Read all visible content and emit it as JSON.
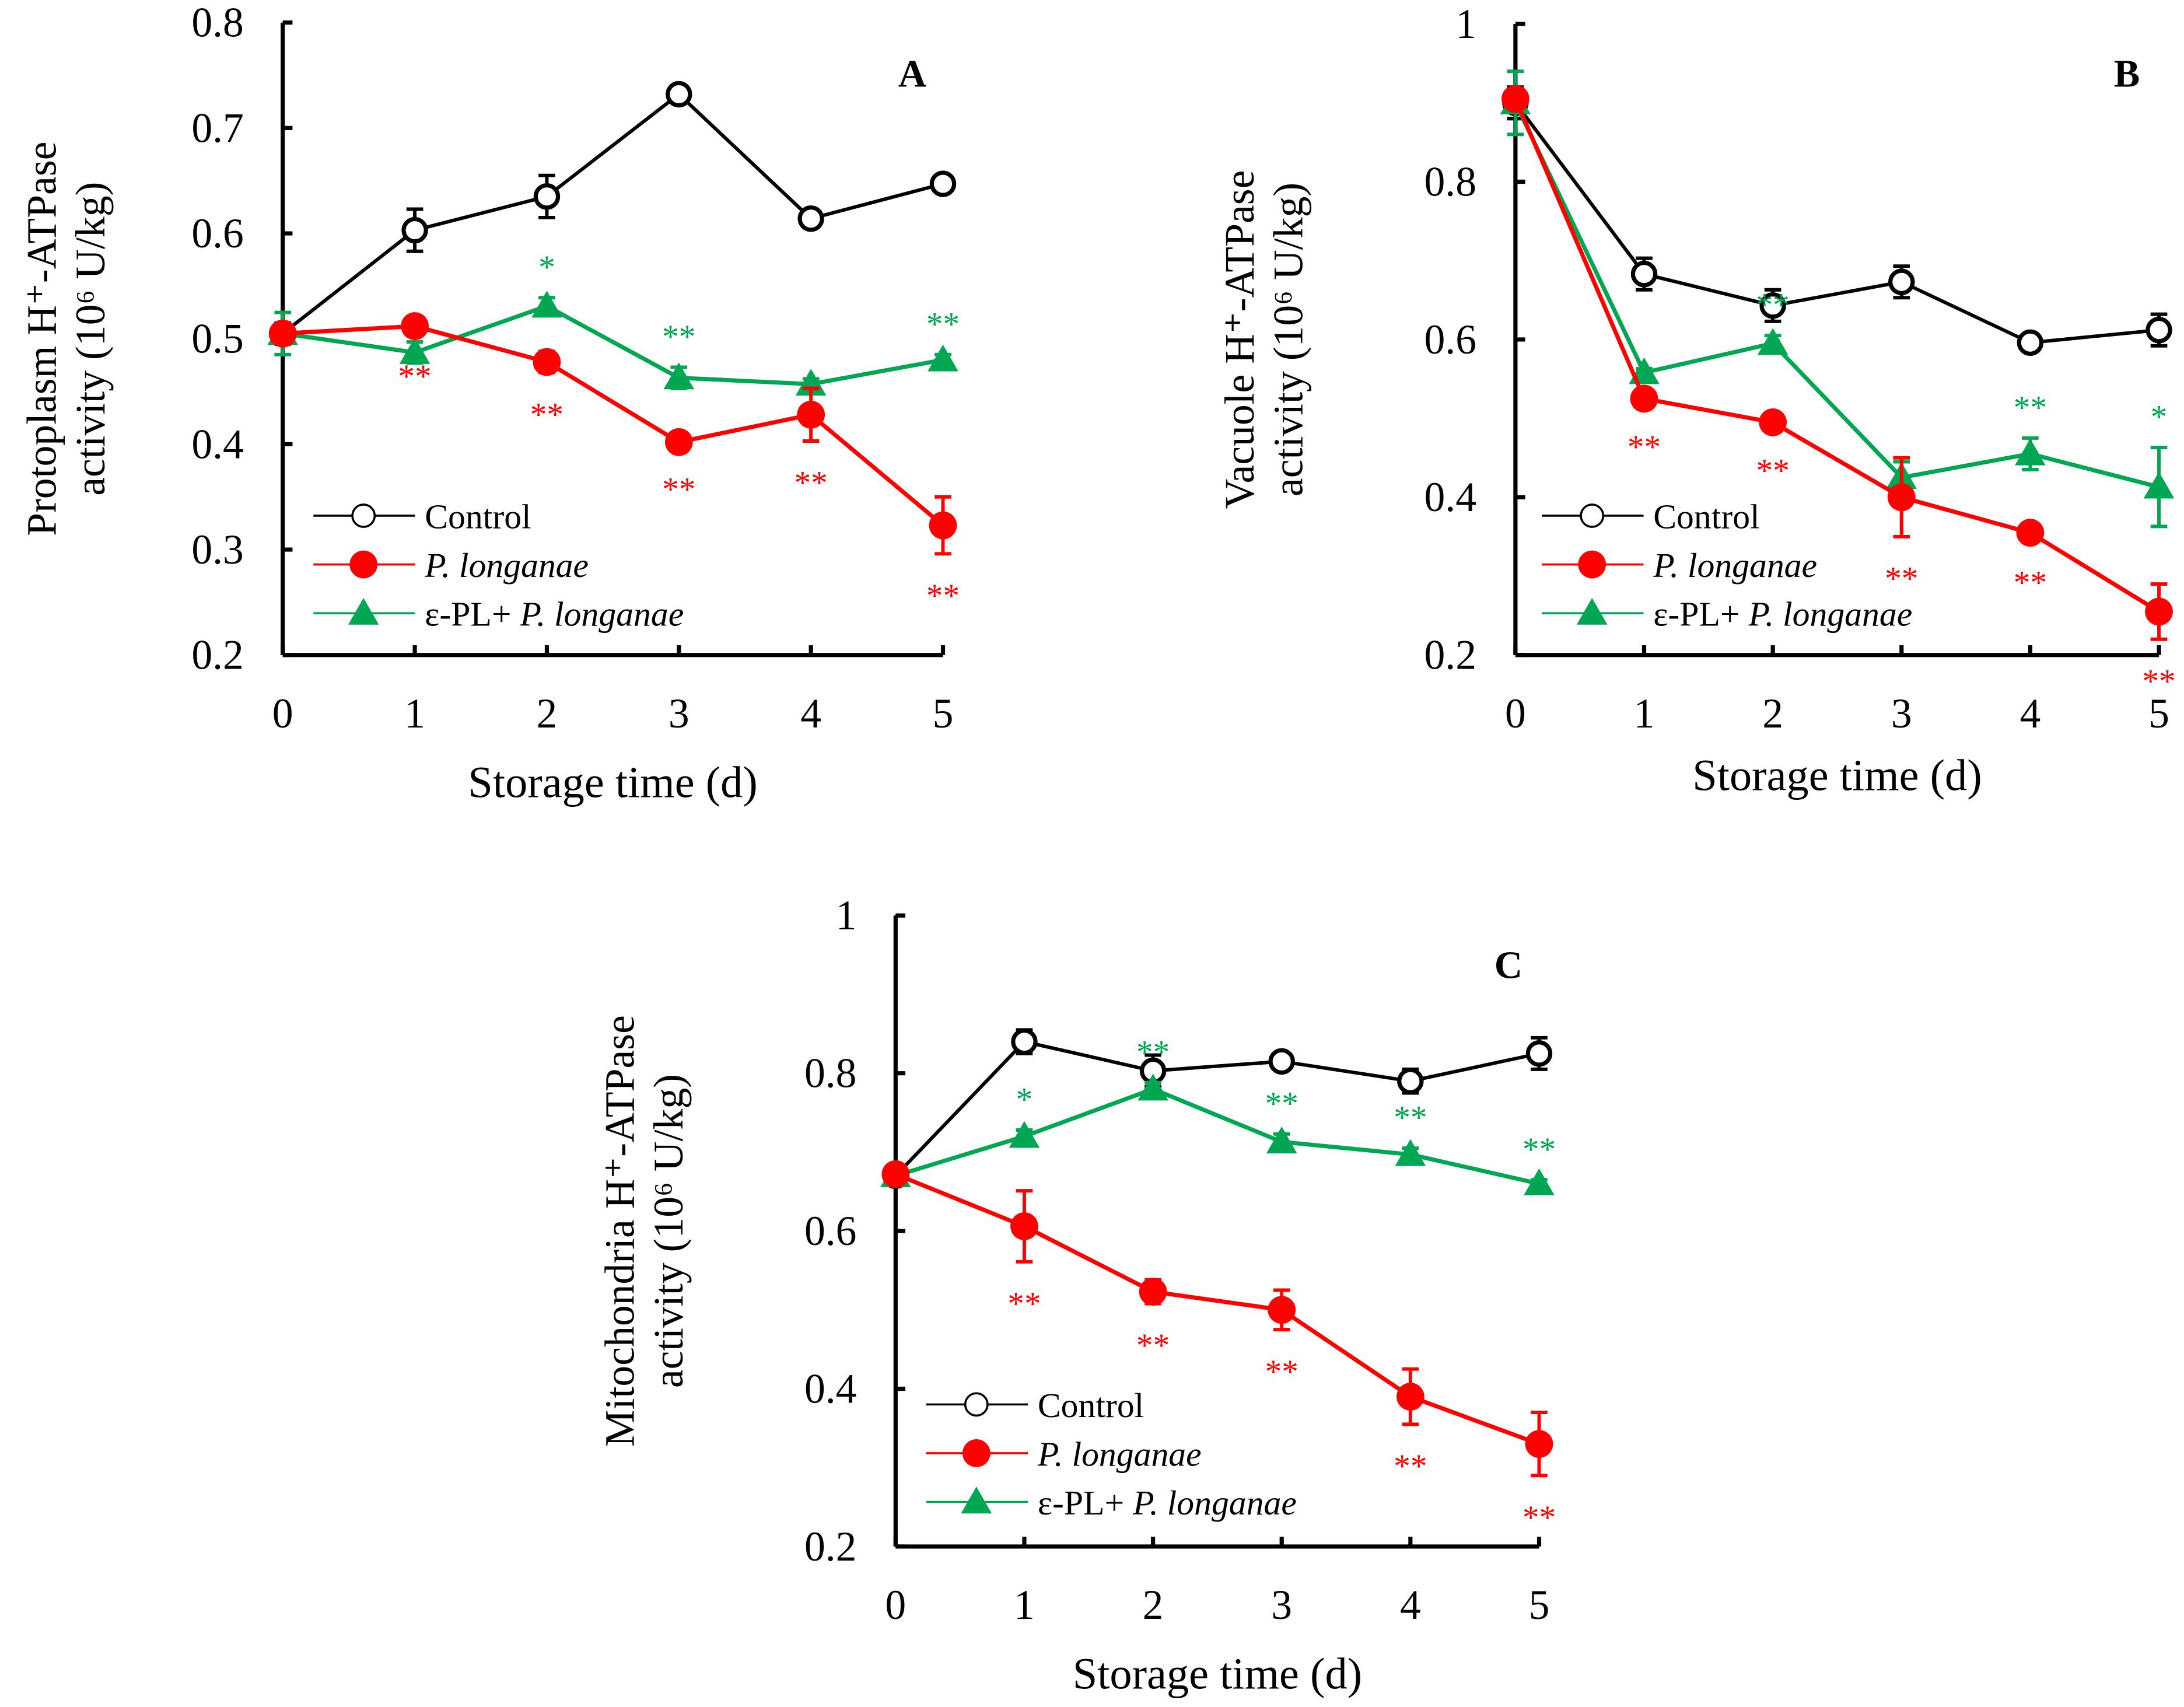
{
  "chart_data": [
    {
      "type": "line",
      "panel_label": "A",
      "xlabel": "Storage time (d)",
      "ylabel": [
        "Protoplasm H⁺-ATPase",
        "activity (10⁶ U/kg)"
      ],
      "x": [
        0,
        1,
        2,
        3,
        4,
        5
      ],
      "xticks": [
        "0",
        "1",
        "2",
        "3",
        "4",
        "5"
      ],
      "ylim": [
        0.2,
        0.8
      ],
      "yticks": [
        "0.2",
        "0.3",
        "0.4",
        "0.5",
        "0.6",
        "0.7",
        "0.8"
      ],
      "ytick_values": [
        0.2,
        0.3,
        0.4,
        0.5,
        0.6,
        0.7,
        0.8
      ],
      "legend_position": "bottom-left",
      "series": [
        {
          "name": "Control",
          "color": "#000000",
          "marker": "open-circle",
          "values": [
            0.505,
            0.603,
            0.635,
            0.732,
            0.614,
            0.647
          ],
          "errors": [
            0.01,
            0.02,
            0.02,
            0.005,
            0.005,
            0.005
          ],
          "significance": [
            "",
            "",
            "",
            "",
            "",
            ""
          ]
        },
        {
          "name": "P. longanae",
          "color": "#ff0000",
          "marker": "filled-circle",
          "values": [
            0.505,
            0.512,
            0.478,
            0.402,
            0.428,
            0.323
          ],
          "errors": [
            0.005,
            0.008,
            0.01,
            0.005,
            0.025,
            0.027
          ],
          "significance": [
            "",
            "**",
            "**",
            "**",
            "**",
            "**"
          ]
        },
        {
          "name": "ε-PL+ P. longanae",
          "color": "#00a651",
          "marker": "filled-triangle",
          "values": [
            0.505,
            0.487,
            0.531,
            0.463,
            0.457,
            0.48
          ],
          "errors": [
            0.02,
            0.01,
            0.008,
            0.01,
            0.005,
            0.005
          ],
          "significance": [
            "",
            "",
            "*",
            "**",
            "",
            "**"
          ]
        }
      ]
    },
    {
      "type": "line",
      "panel_label": "B",
      "xlabel": "Storage time (d)",
      "ylabel": [
        "Vacuole H⁺-ATPase",
        "activity (10⁶ U/kg)"
      ],
      "x": [
        0,
        1,
        2,
        3,
        4,
        5
      ],
      "xticks": [
        "0",
        "1",
        "2",
        "3",
        "4",
        "5"
      ],
      "ylim": [
        0.2,
        1.0
      ],
      "yticks": [
        "0.2",
        "0.4",
        "0.6",
        "0.8",
        "1"
      ],
      "ytick_values": [
        0.2,
        0.4,
        0.6,
        0.8,
        1.0
      ],
      "legend_position": "bottom-left",
      "series": [
        {
          "name": "Control",
          "color": "#000000",
          "marker": "open-circle",
          "values": [
            0.9,
            0.683,
            0.643,
            0.673,
            0.596,
            0.612
          ],
          "errors": [
            0.02,
            0.02,
            0.02,
            0.02,
            0.005,
            0.02
          ],
          "significance": [
            "",
            "",
            "",
            "",
            "",
            ""
          ]
        },
        {
          "name": "P. longanae",
          "color": "#ff0000",
          "marker": "filled-circle",
          "values": [
            0.905,
            0.525,
            0.495,
            0.4,
            0.355,
            0.255
          ],
          "errors": [
            0.01,
            0.008,
            0.008,
            0.05,
            0.01,
            0.035
          ],
          "significance": [
            "",
            "**",
            "**",
            "**",
            "**",
            "**"
          ]
        },
        {
          "name": "ε-PL+ P. longanae",
          "color": "#00a651",
          "marker": "filled-triangle",
          "values": [
            0.9,
            0.558,
            0.595,
            0.425,
            0.455,
            0.413
          ],
          "errors": [
            0.04,
            0.005,
            0.01,
            0.02,
            0.02,
            0.05
          ],
          "significance": [
            "",
            "",
            "**",
            "",
            "**",
            "*"
          ]
        }
      ]
    },
    {
      "type": "line",
      "panel_label": "C",
      "xlabel": "Storage time (d)",
      "ylabel": [
        "Mitochondria H⁺-ATPase",
        "activity (10⁶ U/kg)"
      ],
      "x": [
        0,
        1,
        2,
        3,
        4,
        5
      ],
      "xticks": [
        "0",
        "1",
        "2",
        "3",
        "4",
        "5"
      ],
      "ylim": [
        0.2,
        1.0
      ],
      "yticks": [
        "0.2",
        "0.4",
        "0.6",
        "0.8",
        "1"
      ],
      "ytick_values": [
        0.2,
        0.4,
        0.6,
        0.8,
        1.0
      ],
      "legend_position": "bottom-left",
      "series": [
        {
          "name": "Control",
          "color": "#000000",
          "marker": "open-circle",
          "values": [
            0.67,
            0.84,
            0.803,
            0.815,
            0.79,
            0.825
          ],
          "errors": [
            0.01,
            0.015,
            0.02,
            0.005,
            0.015,
            0.02
          ],
          "significance": [
            "",
            "",
            "",
            "",
            "",
            ""
          ]
        },
        {
          "name": "P. longanae",
          "color": "#ff0000",
          "marker": "filled-circle",
          "values": [
            0.672,
            0.606,
            0.523,
            0.5,
            0.39,
            0.33
          ],
          "errors": [
            0.005,
            0.045,
            0.015,
            0.025,
            0.035,
            0.04
          ],
          "significance": [
            "",
            "**",
            "**",
            "**",
            "**",
            "**"
          ]
        },
        {
          "name": "ε-PL+ P. longanae",
          "color": "#00a651",
          "marker": "filled-triangle",
          "values": [
            0.67,
            0.72,
            0.78,
            0.713,
            0.697,
            0.66
          ],
          "errors": [
            0.005,
            0.008,
            0.008,
            0.01,
            0.008,
            0.005
          ],
          "significance": [
            "",
            "*",
            "**",
            "**",
            "**",
            "**"
          ]
        }
      ]
    }
  ]
}
